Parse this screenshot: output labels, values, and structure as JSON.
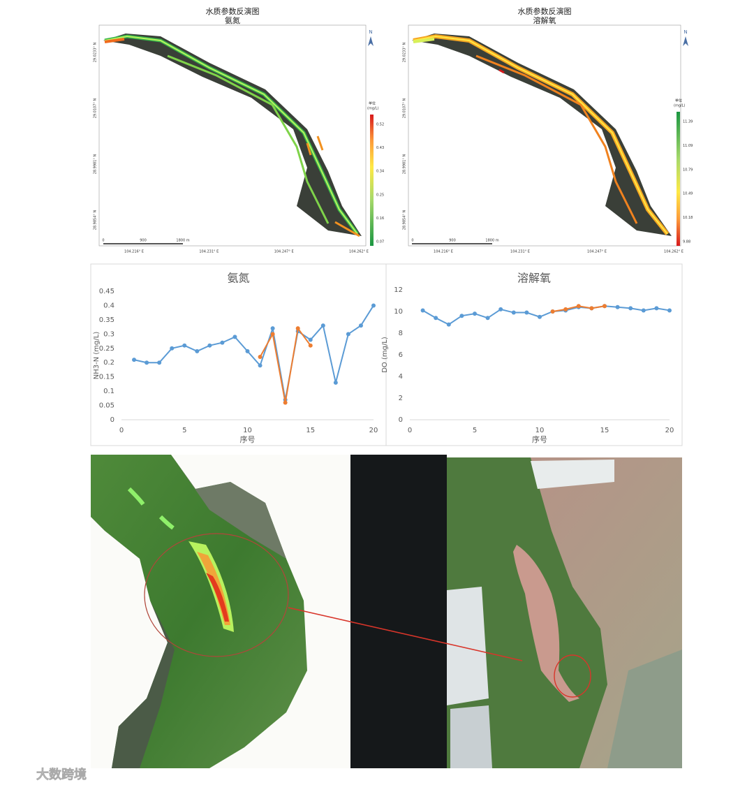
{
  "maps": [
    {
      "title": "水质参数反演图",
      "subtitle": "氨氮",
      "north": "N",
      "unit_title": "单位",
      "unit": "(mg/L)",
      "legend": [
        "0.52",
        "0.43",
        "0.34",
        "0.25",
        "0.16",
        "0.07"
      ],
      "lat_labels": [
        "29.0233° N",
        "29.0107° N",
        "28.9981° N",
        "28.9854° N"
      ],
      "lon_labels": [
        "104.216° E",
        "104.231° E",
        "104.247° E",
        "104.262° E"
      ],
      "scale": [
        "0",
        "900",
        "1800 m"
      ]
    },
    {
      "title": "水质参数反演图",
      "subtitle": "溶解氧",
      "north": "N",
      "unit_title": "单位",
      "unit": "(mg/L)",
      "legend": [
        "11.39",
        "11.09",
        "10.79",
        "10.49",
        "10.18",
        "9.88"
      ],
      "lat_labels": [
        "29.0233° N",
        "29.0107° N",
        "28.9981° N",
        "28.9854° N"
      ],
      "lon_labels": [
        "104.216° E",
        "104.231° E",
        "104.247° E",
        "104.262° E"
      ],
      "scale": [
        "0",
        "900",
        "1800 m"
      ]
    }
  ],
  "chart_data": [
    {
      "type": "line",
      "title": "氨氮",
      "x_label": "序号",
      "y_label": "NH3-N (mg/L)",
      "xlim": [
        0,
        20
      ],
      "xticks": [
        0,
        5,
        10,
        15,
        20
      ],
      "ylim": [
        0,
        0.45
      ],
      "yticks": [
        0,
        0.05,
        0.1,
        0.15,
        0.2,
        0.25,
        0.3,
        0.35,
        0.4,
        0.45
      ],
      "series": [
        {
          "color": "#5b9bd5",
          "x": [
            1,
            2,
            3,
            4,
            5,
            6,
            7,
            8,
            9,
            10,
            11,
            12,
            13,
            14,
            15,
            16,
            17,
            18,
            19,
            20
          ],
          "values": [
            0.21,
            0.2,
            0.2,
            0.25,
            0.26,
            0.24,
            0.26,
            0.27,
            0.29,
            0.24,
            0.19,
            0.32,
            0.07,
            0.31,
            0.28,
            0.33,
            0.13,
            0.3,
            0.33,
            0.4
          ]
        },
        {
          "color": "#ed7d31",
          "x": [
            11,
            12,
            13,
            14,
            15
          ],
          "values": [
            0.22,
            0.3,
            0.06,
            0.32,
            0.26
          ]
        }
      ]
    },
    {
      "type": "line",
      "title": "溶解氧",
      "x_label": "序号",
      "y_label": "DO (mg/L)",
      "xlim": [
        0,
        20
      ],
      "xticks": [
        0,
        5,
        10,
        15,
        20
      ],
      "ylim": [
        0,
        12
      ],
      "yticks": [
        0,
        2,
        4,
        6,
        8,
        10,
        12
      ],
      "series": [
        {
          "color": "#5b9bd5",
          "x": [
            1,
            2,
            3,
            4,
            5,
            6,
            7,
            8,
            9,
            10,
            11,
            12,
            13,
            14,
            15,
            16,
            17,
            18,
            19,
            20
          ],
          "values": [
            10.1,
            9.4,
            8.8,
            9.6,
            9.8,
            9.4,
            10.2,
            9.9,
            9.9,
            9.5,
            10.0,
            10.1,
            10.4,
            10.3,
            10.5,
            10.4,
            10.3,
            10.1,
            10.3,
            10.1
          ]
        },
        {
          "color": "#ed7d31",
          "x": [
            11,
            12,
            13,
            14,
            15
          ],
          "values": [
            10.0,
            10.2,
            10.5,
            10.3,
            10.5
          ]
        }
      ]
    }
  ],
  "watermark": "大数跨境"
}
